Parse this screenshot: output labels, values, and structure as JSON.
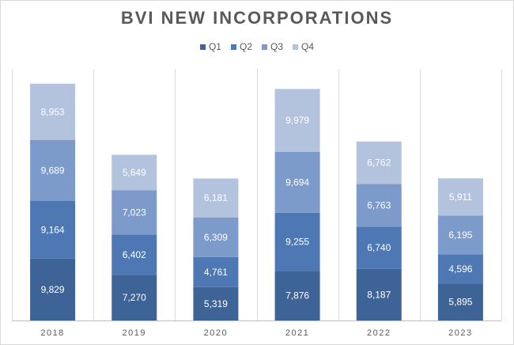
{
  "chart_data": {
    "type": "bar",
    "stacked": true,
    "title": "BVI NEW INCORPORATIONS",
    "categories": [
      "2018",
      "2019",
      "2020",
      "2021",
      "2022",
      "2023"
    ],
    "series": [
      {
        "name": "Q1",
        "color": "#3e6396",
        "values": [
          9829,
          7270,
          5319,
          7876,
          8187,
          5895
        ]
      },
      {
        "name": "Q2",
        "color": "#4d78b4",
        "values": [
          9164,
          6402,
          4761,
          9255,
          6740,
          4596
        ]
      },
      {
        "name": "Q3",
        "color": "#7d9bca",
        "values": [
          9689,
          7023,
          6309,
          9694,
          6763,
          6195
        ]
      },
      {
        "name": "Q4",
        "color": "#b3c3de",
        "values": [
          8953,
          5649,
          6181,
          9979,
          6762,
          5911
        ]
      }
    ],
    "ylim": [
      0,
      40000
    ],
    "legend": "top",
    "grid": "vertical-separators"
  }
}
